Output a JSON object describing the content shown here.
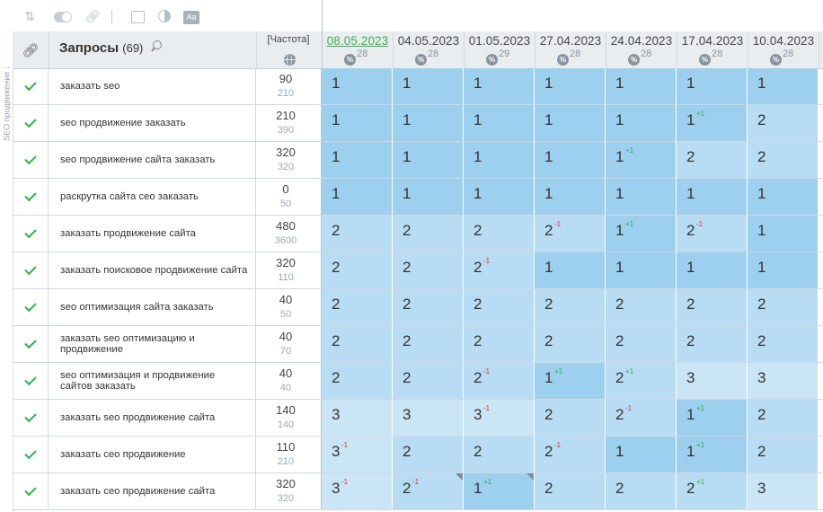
{
  "side_label": "SEO продвижение",
  "toolbar": {
    "icons": [
      "sort-icon",
      "toggle-icon",
      "link-icon",
      "table-icon",
      "contrast-icon",
      "font-icon"
    ],
    "font_icon_text": "Aa"
  },
  "header": {
    "title": "Запросы",
    "count": "(69)",
    "freq_label": "[Частота]",
    "dates": [
      {
        "date": "08.05.2023",
        "num": "28",
        "active": true
      },
      {
        "date": "04.05.2023",
        "num": "28",
        "active": false
      },
      {
        "date": "01.05.2023",
        "num": "29",
        "active": false
      },
      {
        "date": "27.04.2023",
        "num": "28",
        "active": false
      },
      {
        "date": "24.04.2023",
        "num": "28",
        "active": false
      },
      {
        "date": "17.04.2023",
        "num": "28",
        "active": false
      },
      {
        "date": "10.04.2023",
        "num": "28",
        "active": false
      }
    ],
    "pct_symbol": "%"
  },
  "rows": [
    {
      "query": "заказать seo",
      "f1": "90",
      "f2": "210",
      "pos": [
        [
          "1",
          ""
        ],
        [
          "1",
          ""
        ],
        [
          "1",
          ""
        ],
        [
          "1",
          ""
        ],
        [
          "1",
          ""
        ],
        [
          "1",
          ""
        ],
        [
          "1",
          ""
        ]
      ]
    },
    {
      "query": "seo продвижение заказать",
      "f1": "210",
      "f2": "390",
      "pos": [
        [
          "1",
          ""
        ],
        [
          "1",
          ""
        ],
        [
          "1",
          ""
        ],
        [
          "1",
          ""
        ],
        [
          "1",
          ""
        ],
        [
          "1",
          "+1"
        ],
        [
          "2",
          ""
        ]
      ]
    },
    {
      "query": "seo продвижение сайта заказать",
      "f1": "320",
      "f2": "320",
      "pos": [
        [
          "1",
          ""
        ],
        [
          "1",
          ""
        ],
        [
          "1",
          ""
        ],
        [
          "1",
          ""
        ],
        [
          "1",
          "+1"
        ],
        [
          "2",
          ""
        ],
        [
          "2",
          ""
        ]
      ]
    },
    {
      "query": "раскрутка сайта сео заказать",
      "f1": "0",
      "f2": "50",
      "pos": [
        [
          "1",
          ""
        ],
        [
          "1",
          ""
        ],
        [
          "1",
          ""
        ],
        [
          "1",
          ""
        ],
        [
          "1",
          ""
        ],
        [
          "1",
          ""
        ],
        [
          "1",
          ""
        ]
      ]
    },
    {
      "query": "заказать продвижение сайта",
      "f1": "480",
      "f2": "3600",
      "pos": [
        [
          "2",
          ""
        ],
        [
          "2",
          ""
        ],
        [
          "2",
          ""
        ],
        [
          "2",
          "-1"
        ],
        [
          "1",
          "+1"
        ],
        [
          "2",
          "-1"
        ],
        [
          "1",
          ""
        ]
      ]
    },
    {
      "query": "заказать поисковое продвижение сайта",
      "f1": "320",
      "f2": "110",
      "pos": [
        [
          "2",
          ""
        ],
        [
          "2",
          ""
        ],
        [
          "2",
          "-1"
        ],
        [
          "1",
          ""
        ],
        [
          "1",
          ""
        ],
        [
          "1",
          ""
        ],
        [
          "1",
          ""
        ]
      ]
    },
    {
      "query": "seo оптимизация сайта заказать",
      "f1": "40",
      "f2": "50",
      "pos": [
        [
          "2",
          ""
        ],
        [
          "2",
          ""
        ],
        [
          "2",
          ""
        ],
        [
          "2",
          ""
        ],
        [
          "2",
          ""
        ],
        [
          "2",
          ""
        ],
        [
          "2",
          ""
        ]
      ]
    },
    {
      "query": "заказать seo оптимизацию и продвижение",
      "f1": "40",
      "f2": "70",
      "pos": [
        [
          "2",
          ""
        ],
        [
          "2",
          ""
        ],
        [
          "2",
          ""
        ],
        [
          "2",
          ""
        ],
        [
          "2",
          ""
        ],
        [
          "2",
          ""
        ],
        [
          "2",
          ""
        ]
      ]
    },
    {
      "query": "seo оптимизация и продвижение сайтов заказать",
      "f1": "40",
      "f2": "40",
      "pos": [
        [
          "2",
          ""
        ],
        [
          "2",
          ""
        ],
        [
          "2",
          "-1"
        ],
        [
          "1",
          "+1"
        ],
        [
          "2",
          "+1"
        ],
        [
          "3",
          ""
        ],
        [
          "3",
          ""
        ]
      ]
    },
    {
      "query": "заказать seo продвижение сайта",
      "f1": "140",
      "f2": "140",
      "pos": [
        [
          "3",
          ""
        ],
        [
          "3",
          ""
        ],
        [
          "3",
          "-1"
        ],
        [
          "2",
          ""
        ],
        [
          "2",
          "-1"
        ],
        [
          "1",
          "+1"
        ],
        [
          "2",
          ""
        ]
      ]
    },
    {
      "query": "заказать сео продвижение",
      "f1": "110",
      "f2": "210",
      "pos": [
        [
          "3",
          "-1"
        ],
        [
          "2",
          ""
        ],
        [
          "2",
          ""
        ],
        [
          "2",
          "-1"
        ],
        [
          "1",
          ""
        ],
        [
          "1",
          "+1"
        ],
        [
          "2",
          ""
        ]
      ]
    },
    {
      "query": "заказать сео продвижение сайта",
      "f1": "320",
      "f2": "320",
      "pos": [
        [
          "3",
          "-1"
        ],
        [
          "2",
          "-1"
        ],
        [
          "1",
          "+1"
        ],
        [
          "2",
          ""
        ],
        [
          "2",
          ""
        ],
        [
          "2",
          "+1"
        ],
        [
          "3",
          ""
        ]
      ]
    }
  ]
}
